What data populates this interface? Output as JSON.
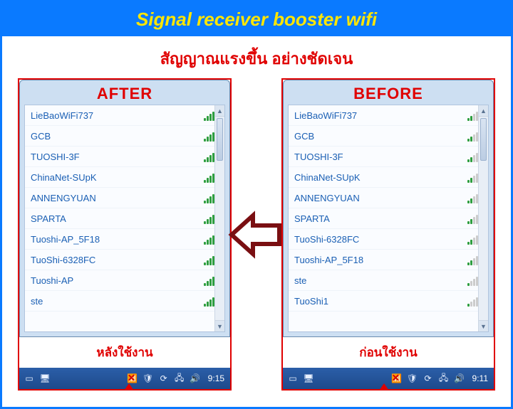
{
  "banner": {
    "title": "Signal receiver booster wifi"
  },
  "subtitle": "สัญญาณแรงขึ้น อย่างชัดเจน",
  "colors": {
    "accent_blue": "#0a7aff",
    "banner_text": "#ffe600",
    "red": "#e00000",
    "wifi_text": "#1a5fb4",
    "bar_on": "#2e9e3f",
    "bar_off": "#cccccc",
    "taskbar_top": "#2b5ea8",
    "taskbar_bottom": "#1e4a8c",
    "arrow_stroke": "#7a0f12"
  },
  "left": {
    "label": "AFTER",
    "caption": "หลังใช้งาน",
    "time": "9:15",
    "networks": [
      {
        "name": "LieBaoWiFi737",
        "strength": 5
      },
      {
        "name": "GCB",
        "strength": 5
      },
      {
        "name": "TUOSHI-3F",
        "strength": 5
      },
      {
        "name": "ChinaNet-SUpK",
        "strength": 5
      },
      {
        "name": "ANNENGYUAN",
        "strength": 5
      },
      {
        "name": "SPARTA",
        "strength": 5
      },
      {
        "name": "Tuoshi-AP_5F18",
        "strength": 5
      },
      {
        "name": "TuoShi-6328FC",
        "strength": 5
      },
      {
        "name": "Tuoshi-AP",
        "strength": 5
      },
      {
        "name": "ste",
        "strength": 5
      }
    ]
  },
  "right": {
    "label": "BEFORE",
    "caption": "ก่อนใช้งาน",
    "time": "9:11",
    "networks": [
      {
        "name": "LieBaoWiFi737",
        "strength": 2
      },
      {
        "name": "GCB",
        "strength": 2
      },
      {
        "name": "TUOSHI-3F",
        "strength": 2
      },
      {
        "name": "ChinaNet-SUpK",
        "strength": 2
      },
      {
        "name": "ANNENGYUAN",
        "strength": 2
      },
      {
        "name": "SPARTA",
        "strength": 2
      },
      {
        "name": "TuoShi-6328FC",
        "strength": 2
      },
      {
        "name": "Tuoshi-AP_5F18",
        "strength": 2
      },
      {
        "name": "ste",
        "strength": 1
      },
      {
        "name": "TuoShi1",
        "strength": 1
      }
    ]
  },
  "tray_icons": [
    "window-icon",
    "monitor-icon",
    "status-icon",
    "shield-icon",
    "refresh-icon",
    "network-icon",
    "speaker-icon"
  ]
}
